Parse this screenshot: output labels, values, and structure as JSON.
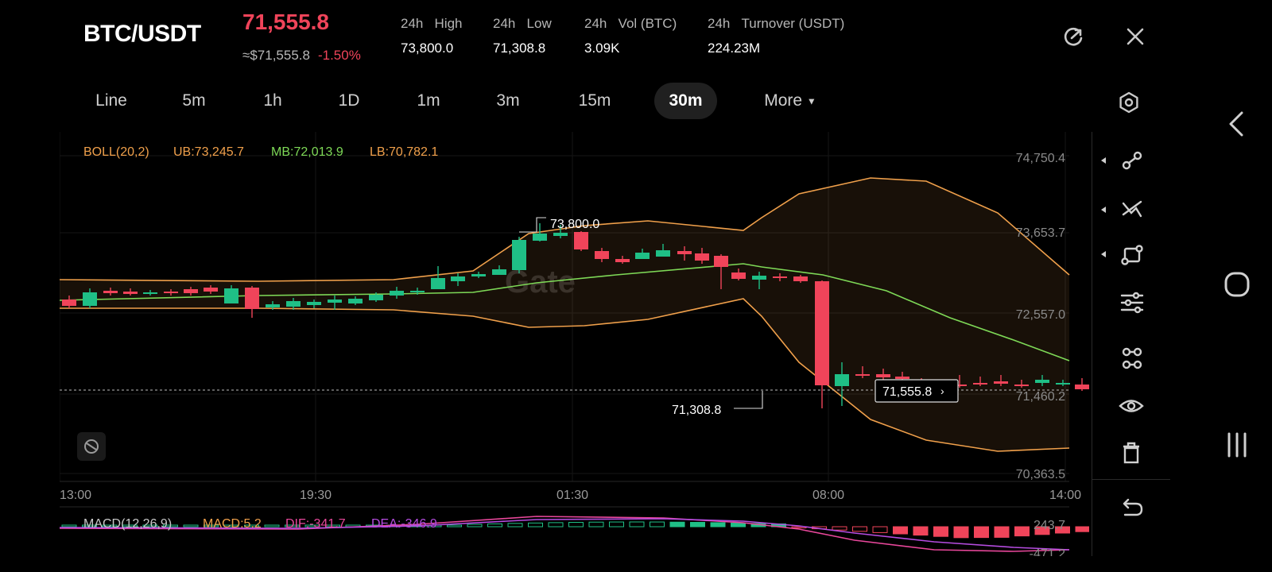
{
  "header": {
    "pair": "BTC/USDT",
    "price": "71,555.8",
    "approx": "≈$71,555.8",
    "change": "-1.50%",
    "stats": [
      {
        "k1": "24h",
        "k2": "High",
        "v": "73,800.0"
      },
      {
        "k1": "24h",
        "k2": "Low",
        "v": "71,308.8"
      },
      {
        "k1": "24h",
        "k2": "Vol (BTC)",
        "v": "3.09K"
      },
      {
        "k1": "24h",
        "k2": "Turnover (USDT)",
        "v": "224.23M"
      }
    ]
  },
  "tabs": [
    "Line",
    "5m",
    "1h",
    "1D",
    "1m",
    "3m",
    "15m",
    "30m",
    "More"
  ],
  "active_tab": "30m",
  "boll": {
    "label": "BOLL(20,2)",
    "ub": "UB:73,245.7",
    "mb": "MB:72,013.9",
    "lb": "LB:70,782.1"
  },
  "macd": {
    "label": "MACD(12,26,9)",
    "macd": "MACD:5.2",
    "dif": "DIF:-341.7",
    "dea": "DEA:-346.9",
    "axis_top": "243.7",
    "axis_bottom": "-471.2"
  },
  "axis": {
    "y_ticks": [
      "74,750.4",
      "73,653.7",
      "72,557.0",
      "71,460.2",
      "70,363.5"
    ],
    "x_ticks": [
      "13:00",
      "19:30",
      "01:30",
      "08:00",
      "14:00"
    ]
  },
  "annotations": {
    "high_label": "73,800.0",
    "low_label": "71,308.8",
    "last_price": "71,555.8"
  },
  "watermark": "Gate",
  "colors": {
    "up": "#1fbf86",
    "down": "#f0445a",
    "ub": "#f0a04b",
    "mb": "#7ed957",
    "lb": "#f0a04b",
    "dif": "#e8479b",
    "dea": "#b54ce0",
    "bg": "#000000"
  },
  "icons": {
    "refresh": "refresh-icon",
    "close": "close-icon",
    "settings": "settings-icon",
    "rail": [
      "line-tool-icon",
      "multi-line-icon",
      "shape-tool-icon",
      "indicator-icon",
      "layers-icon",
      "visibility-icon",
      "delete-icon",
      "undo-icon"
    ],
    "nav": [
      "back-icon",
      "home-icon",
      "recents-icon"
    ]
  }
}
